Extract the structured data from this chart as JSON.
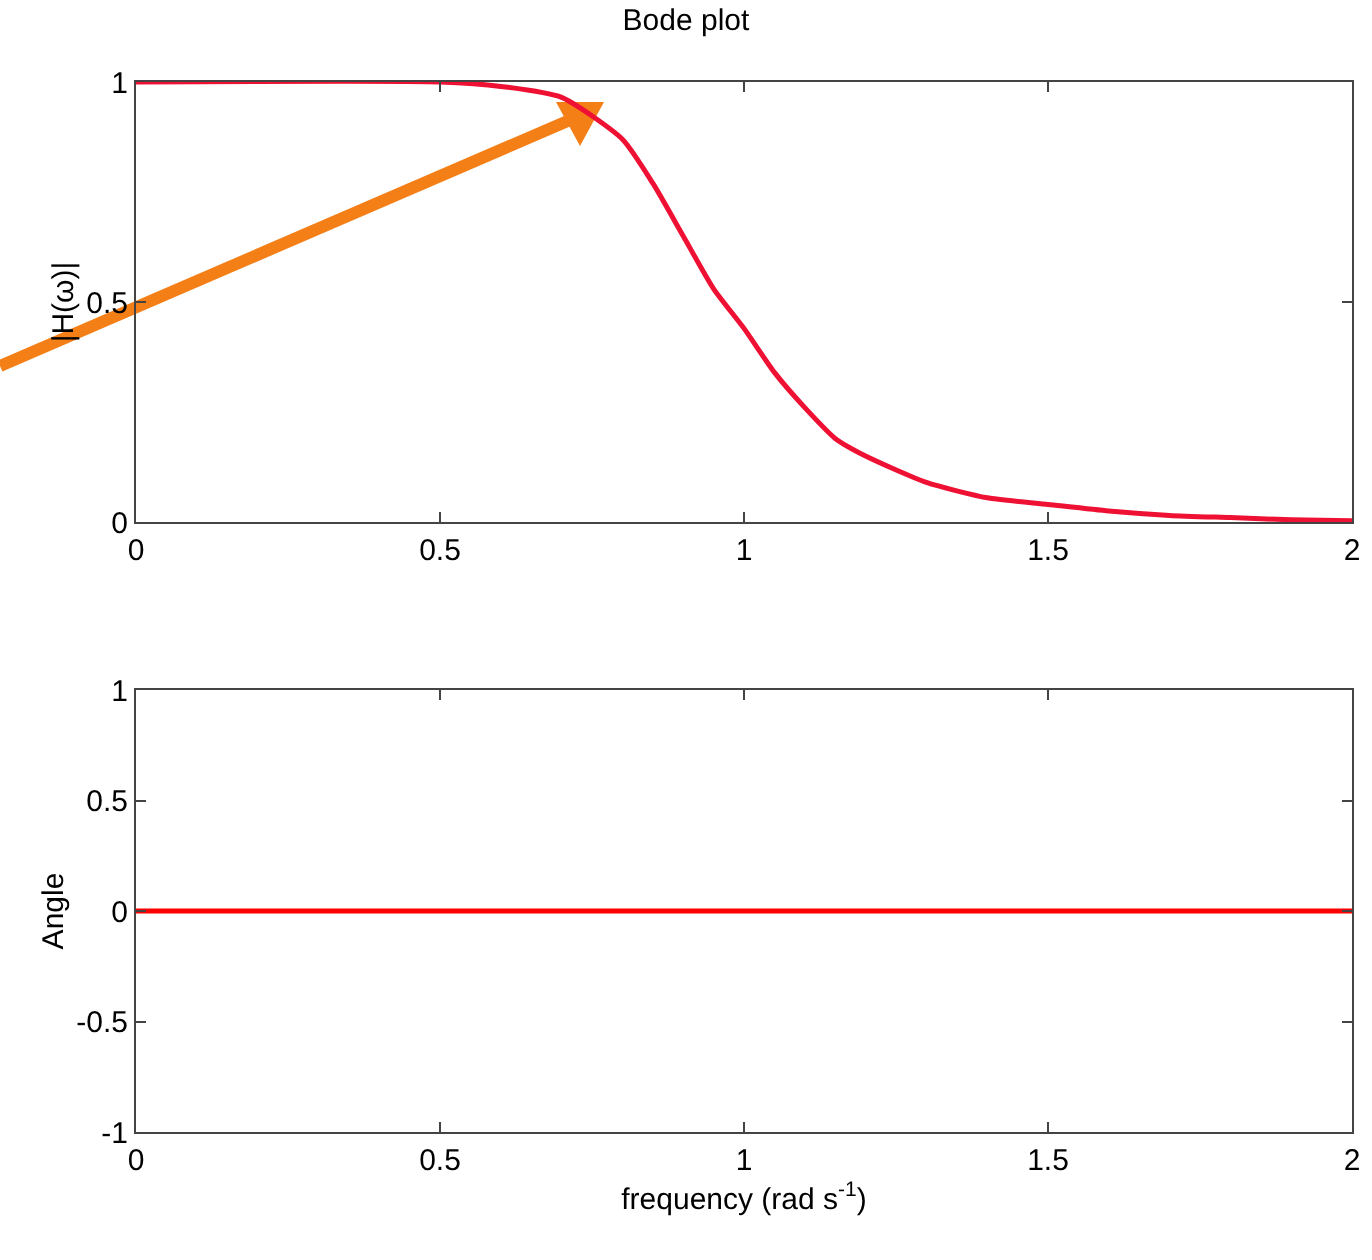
{
  "chart_data": [
    {
      "type": "line",
      "title": "Bode plot",
      "ylabel": "|H(ω)|",
      "x": [
        0,
        0.5,
        0.6,
        0.7,
        0.8,
        0.85,
        0.9,
        0.95,
        1,
        1.05,
        1.1,
        1.15,
        1.2,
        1.3,
        1.4,
        1.5,
        1.6,
        1.7,
        1.8,
        1.9,
        2
      ],
      "series": [
        {
          "color": "#ee1133",
          "values": [
            1,
            1,
            0.99,
            0.965,
            0.87,
            0.77,
            0.65,
            0.53,
            0.44,
            0.34,
            0.26,
            0.19,
            0.15,
            0.09,
            0.055,
            0.04,
            0.025,
            0.015,
            0.01,
            0.005,
            0.003
          ]
        }
      ],
      "xlim": [
        0,
        2
      ],
      "xticks": [
        0,
        0.5,
        1,
        1.5,
        2
      ],
      "ylim": [
        0,
        1
      ],
      "yticks": [
        0,
        0.5,
        1
      ]
    },
    {
      "type": "line",
      "xlabel": "frequency (rad s$^{-1}$)",
      "ylabel": "Angle",
      "x": [
        0,
        2
      ],
      "series": [
        {
          "color": "#ff0000",
          "values": [
            0,
            0
          ]
        }
      ],
      "xlim": [
        0,
        2
      ],
      "xticks": [
        0,
        0.5,
        1,
        1.5,
        2
      ],
      "ylim": [
        -1,
        1
      ],
      "yticks": [
        -1,
        -0.5,
        0,
        0.5,
        1
      ]
    }
  ]
}
